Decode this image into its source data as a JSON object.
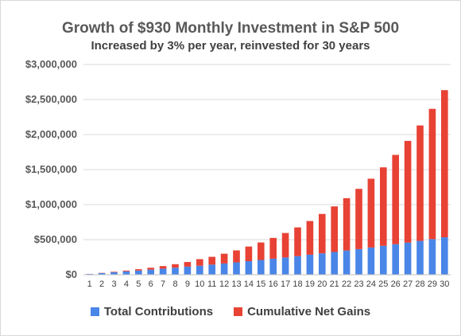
{
  "chart_data": {
    "type": "bar",
    "stacked": true,
    "title": "Growth of $930 Monthly Investment in S&P 500",
    "subtitle": "Increased by 3% per year, reinvested for 30 years",
    "xlabel": "",
    "ylabel": "",
    "ylim": [
      0,
      3000000
    ],
    "yticks": [
      0,
      500000,
      1000000,
      1500000,
      2000000,
      2500000,
      3000000
    ],
    "ytick_labels": [
      "$0",
      "$500,000",
      "$1,000,000",
      "$1,500,000",
      "$2,000,000",
      "$2,500,000",
      "$3,000,000"
    ],
    "grid": true,
    "legend": "bottom",
    "categories": [
      "1",
      "2",
      "3",
      "4",
      "5",
      "6",
      "7",
      "8",
      "9",
      "10",
      "11",
      "12",
      "13",
      "14",
      "15",
      "16",
      "17",
      "18",
      "19",
      "20",
      "21",
      "22",
      "23",
      "24",
      "25",
      "26",
      "27",
      "28",
      "29",
      "30"
    ],
    "series": [
      {
        "name": "Total Contributions",
        "color": "#4a86e8",
        "values": [
          11000,
          23000,
          35000,
          47000,
          59000,
          72000,
          86000,
          100000,
          115000,
          128000,
          144000,
          160000,
          176000,
          193000,
          210000,
          228000,
          246000,
          265000,
          285000,
          305000,
          324000,
          345000,
          365000,
          388000,
          412000,
          435000,
          458000,
          482000,
          507000,
          534000
        ]
      },
      {
        "name": "Cumulative Net Gains",
        "color": "#e84235",
        "values": [
          1000,
          3000,
          7000,
          12000,
          19000,
          27000,
          37000,
          50000,
          66000,
          94000,
          111000,
          140000,
          171000,
          209000,
          250000,
          297000,
          349000,
          410000,
          481000,
          562000,
          651000,
          747000,
          860000,
          982000,
          1120000,
          1275000,
          1452000,
          1648000,
          1860000,
          2100000
        ]
      }
    ]
  }
}
